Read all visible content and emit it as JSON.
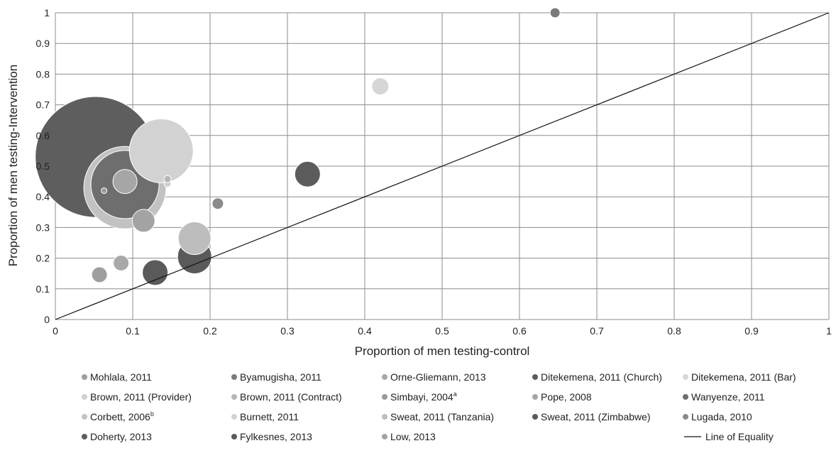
{
  "chart_data": {
    "type": "bubble",
    "title": "",
    "xlabel": "Proportion of men testing-control",
    "ylabel": "Proportion of men testing-Intervention",
    "xlim": [
      0,
      1
    ],
    "ylim": [
      0,
      1
    ],
    "x_ticks": [
      "0",
      "0.1",
      "0.2",
      "0.3",
      "0.4",
      "0.5",
      "0.6",
      "0.7",
      "0.8",
      "0.9",
      "1"
    ],
    "y_ticks": [
      "0",
      "0.1",
      "0.2",
      "0.3",
      "0.4",
      "0.5",
      "0.6",
      "0.7",
      "0.8",
      "0.9",
      "1"
    ],
    "grid": true,
    "legend_position": "bottom",
    "series": [
      {
        "name": "Mohlala, 2011",
        "sup": "",
        "x": 0.057,
        "y": 0.146,
        "size": 11,
        "color": "#9e9e9e"
      },
      {
        "name": "Byamugisha, 2011",
        "sup": "",
        "x": 0.646,
        "y": 1.0,
        "size": 7,
        "color": "#7a7a7a"
      },
      {
        "name": "Orne-Gliemann, 2013",
        "sup": "",
        "x": 0.085,
        "y": 0.184,
        "size": 11,
        "color": "#a8a8a8"
      },
      {
        "name": "Ditekemena, 2011 (Church)",
        "sup": "",
        "x": 0.326,
        "y": 0.474,
        "size": 18,
        "color": "#5c5c5c"
      },
      {
        "name": "Ditekemena, 2011 (Bar)",
        "sup": "",
        "x": 0.42,
        "y": 0.76,
        "size": 12,
        "color": "#d6d6d6"
      },
      {
        "name": "Brown, 2011 (Provider)",
        "sup": "",
        "x": 0.145,
        "y": 0.443,
        "size": 5,
        "color": "#d0d0d0"
      },
      {
        "name": "Brown, 2011 (Contract)",
        "sup": "",
        "x": 0.145,
        "y": 0.458,
        "size": 5,
        "color": "#b5b5b5"
      },
      {
        "name": "Simbayi, 2004",
        "sup": "a",
        "x": 0.063,
        "y": 0.42,
        "size": 4,
        "color": "#9a9a9a"
      },
      {
        "name": "Pope, 2008",
        "sup": "",
        "x": 0.09,
        "y": 0.45,
        "size": 17,
        "color": "#a6a6a6"
      },
      {
        "name": "Wanyenze, 2011",
        "sup": "",
        "x": 0.09,
        "y": 0.44,
        "size": 48,
        "color": "#6e6e6e"
      },
      {
        "name": "Corbett, 2006",
        "sup": "b",
        "x": 0.09,
        "y": 0.43,
        "size": 58,
        "color": "#c2c2c2"
      },
      {
        "name": "Burnett, 2011",
        "sup": "",
        "x": 0.137,
        "y": 0.55,
        "size": 45,
        "color": "#d2d2d2"
      },
      {
        "name": "Sweat, 2011 (Tanzania)",
        "sup": "",
        "x": 0.18,
        "y": 0.265,
        "size": 23,
        "color": "#bdbdbd"
      },
      {
        "name": "Sweat, 2011 (Zimbabwe)",
        "sup": "",
        "x": 0.18,
        "y": 0.205,
        "size": 24,
        "color": "#5a5a5a"
      },
      {
        "name": "Lugada, 2010",
        "sup": "",
        "x": 0.21,
        "y": 0.378,
        "size": 8,
        "color": "#8a8a8a"
      },
      {
        "name": "Doherty, 2013",
        "sup": "",
        "x": 0.052,
        "y": 0.53,
        "size": 85,
        "color": "#5e5e5e"
      },
      {
        "name": "Fylkesnes, 2013",
        "sup": "",
        "x": 0.129,
        "y": 0.153,
        "size": 18,
        "color": "#5a5a5a"
      },
      {
        "name": "Low, 2013",
        "sup": "",
        "x": 0.114,
        "y": 0.322,
        "size": 16,
        "color": "#a3a3a3"
      }
    ],
    "bubble_draw_order": [
      15,
      10,
      9,
      11,
      8,
      7,
      5,
      6,
      13,
      12,
      14,
      16,
      17,
      0,
      2,
      3,
      4,
      1
    ],
    "line_of_equality": {
      "name": "Line of Equality",
      "from": [
        0,
        0
      ],
      "to": [
        1,
        1
      ]
    }
  }
}
